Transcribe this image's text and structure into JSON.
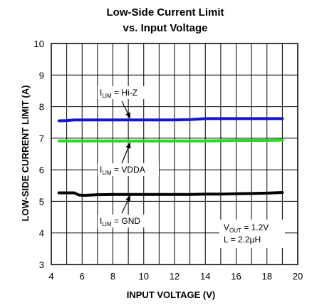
{
  "chart_data": {
    "type": "line",
    "title": "Low-Side Current Limit",
    "subtitle": "vs. Input Voltage",
    "xlabel": "INPUT VOLTAGE (V)",
    "ylabel": "LOW-SIDE CURRENT LIMIT (A)",
    "xlim": [
      4,
      20
    ],
    "ylim": [
      3,
      10
    ],
    "x_ticks": [
      "4",
      "6",
      "8",
      "10",
      "12",
      "14",
      "16",
      "18",
      "20"
    ],
    "y_ticks": [
      "3",
      "4",
      "5",
      "6",
      "7",
      "8",
      "9",
      "10"
    ],
    "grid": true,
    "series": [
      {
        "label_main": "I",
        "label_sub": "LIM",
        "label_rest": " = Hi-Z",
        "color": "#1515d0",
        "x": [
          4.5,
          5.0,
          5.5,
          6.0,
          7.0,
          8.0,
          9.0,
          10.0,
          11.0,
          12.0,
          13.0,
          14.0,
          15.0,
          16.0,
          17.0,
          18.0,
          19.0
        ],
        "y": [
          7.55,
          7.56,
          7.58,
          7.58,
          7.58,
          7.58,
          7.58,
          7.58,
          7.58,
          7.58,
          7.59,
          7.62,
          7.62,
          7.62,
          7.62,
          7.62,
          7.62
        ]
      },
      {
        "label_main": "I",
        "label_sub": "LIM",
        "label_rest": " = VDDA",
        "color": "#22dd22",
        "x": [
          4.5,
          5.0,
          6.0,
          7.0,
          8.0,
          9.0,
          10.0,
          11.0,
          12.0,
          13.0,
          14.0,
          15.0,
          16.0,
          17.0,
          18.0,
          19.0
        ],
        "y": [
          6.91,
          6.91,
          6.91,
          6.91,
          6.91,
          6.91,
          6.91,
          6.91,
          6.91,
          6.91,
          6.91,
          6.92,
          6.93,
          6.93,
          6.93,
          6.94
        ]
      },
      {
        "label_main": "I",
        "label_sub": "LIM",
        "label_rest": " = GND",
        "color": "#000000",
        "x": [
          4.5,
          5.0,
          5.5,
          5.8,
          6.2,
          7.0,
          8.0,
          9.0,
          10.0,
          11.0,
          12.0,
          13.0,
          14.0,
          15.0,
          16.0,
          17.0,
          18.0,
          19.0
        ],
        "y": [
          5.27,
          5.27,
          5.27,
          5.2,
          5.19,
          5.21,
          5.22,
          5.22,
          5.22,
          5.22,
          5.22,
          5.22,
          5.23,
          5.23,
          5.24,
          5.25,
          5.26,
          5.28
        ]
      }
    ],
    "conditions": [
      {
        "main": "V",
        "sub": "OUT",
        "rest": " = 1.2V"
      },
      {
        "main": "L = 2.2µH",
        "sub": "",
        "rest": ""
      }
    ]
  }
}
